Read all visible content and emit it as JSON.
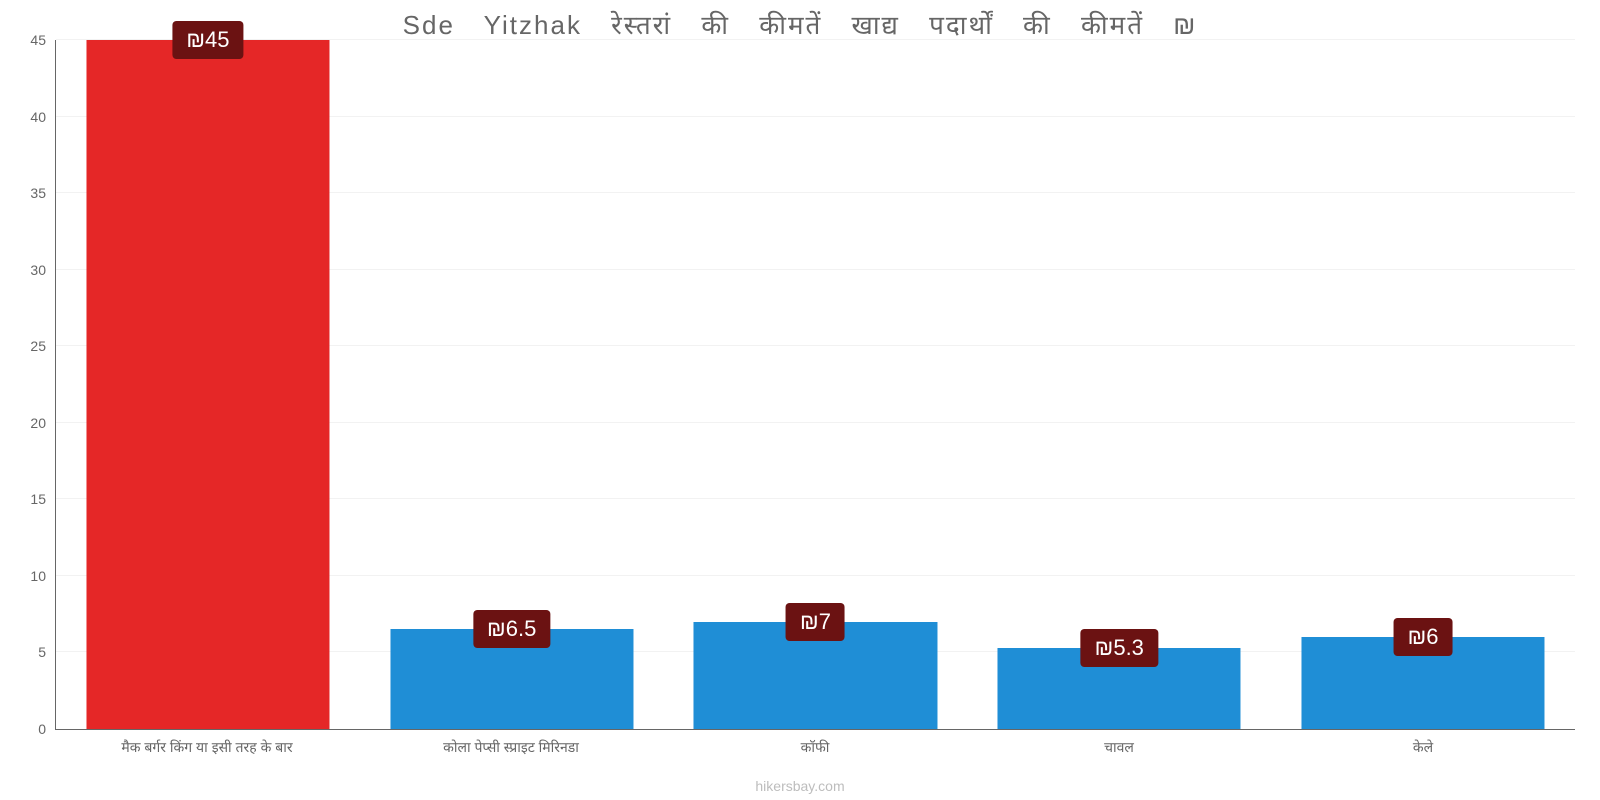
{
  "chart": {
    "type": "bar",
    "title": "Sde Yitzhak रेस्तरां की कीमतें खाद्य पदार्थों की कीमतें ₪",
    "title_fontsize": 26,
    "title_color": "#666666",
    "background_color": "#ffffff",
    "grid_color": "#f2f2f2",
    "axis_color": "#666666",
    "label_color": "#666666",
    "label_fontsize": 14,
    "attribution": "hikersbay.com",
    "attribution_color": "#bdbdbd",
    "ylim": [
      0,
      45
    ],
    "ytick_step": 5,
    "ytick_labels": [
      "0",
      "5",
      "10",
      "15",
      "20",
      "25",
      "30",
      "35",
      "40",
      "45"
    ],
    "bar_width_pct": 80,
    "badge_bg": "#6b1212",
    "badge_text_color": "#ffffff",
    "badge_fontsize": 22,
    "categories": [
      "मैक बर्गर किंग या इसी तरह के बार",
      "कोला पेप्सी स्प्राइट मिरिनडा",
      "कॉफी",
      "चावल",
      "केले"
    ],
    "values": [
      45,
      6.5,
      7,
      5.3,
      6
    ],
    "value_labels": [
      "₪45",
      "₪6.5",
      "₪7",
      "₪5.3",
      "₪6"
    ],
    "bar_colors": [
      "#e52727",
      "#1f8ed6",
      "#1f8ed6",
      "#1f8ed6",
      "#1f8ed6"
    ]
  }
}
